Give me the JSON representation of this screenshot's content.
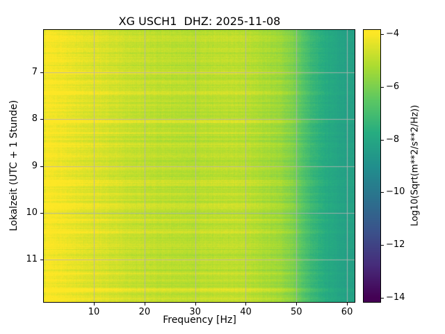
{
  "window": {
    "background": "#ffffff"
  },
  "chart_data": {
    "type": "heatmap",
    "title": "XG USCH1  DHZ: 2025-11-08",
    "xlabel": "Frequency [Hz]",
    "ylabel": "Lokalzeit (UTC + 1 Stunde)",
    "colorbar_label": "Log10(Sqrt(m**2/s**2/Hz))",
    "colormap": "viridis",
    "grid": true,
    "grid_color": "#b2b2b2",
    "x_range": [
      0.1,
      61.5
    ],
    "y_range": [
      6.1,
      11.9
    ],
    "x_ticks": [
      10,
      20,
      30,
      40,
      50,
      60
    ],
    "x_tick_labels": [
      "10",
      "20",
      "30",
      "40",
      "50",
      "60"
    ],
    "y_ticks": [
      7,
      8,
      9,
      10,
      11
    ],
    "y_tick_labels": [
      "7",
      "8",
      "9",
      "10",
      "11"
    ],
    "colorbar_ticks": [
      -4,
      -6,
      -8,
      -10,
      -12,
      -14
    ],
    "colorbar_tick_labels": [
      "−4",
      "−6",
      "−8",
      "−10",
      "−12",
      "−14"
    ],
    "colorbar_value_range_top_bottom": [
      -3.85,
      -14.15
    ],
    "value_limits": [
      -14,
      -4
    ],
    "viridis_stops": [
      "#440154",
      "#472d7b",
      "#3b528b",
      "#2c728e",
      "#21908d",
      "#27ad81",
      "#5dc863",
      "#aadc32",
      "#fde725"
    ],
    "frequency_profile": {
      "freq_hz": [
        0.1,
        0.6,
        1.5,
        3,
        5,
        8,
        12,
        18,
        24,
        30,
        36,
        40,
        44,
        47,
        49,
        51,
        53,
        56,
        59,
        61.5
      ],
      "log10_amplitude": [
        -4.5,
        -4.05,
        -4.1,
        -4.15,
        -4.3,
        -4.45,
        -4.6,
        -4.9,
        -5.05,
        -5.1,
        -5.0,
        -5.05,
        -5.3,
        -5.55,
        -5.9,
        -6.6,
        -7.3,
        -7.9,
        -8.2,
        -8.3
      ]
    },
    "time_events": [
      {
        "time": 6.3,
        "boost": 0.35,
        "width": 0.05
      },
      {
        "time": 6.5,
        "boost": 0.25,
        "width": 0.03
      },
      {
        "time": 6.75,
        "boost": 0.3,
        "width": 0.04
      },
      {
        "time": 7.0,
        "boost": 0.45,
        "width": 0.05
      },
      {
        "time": 7.2,
        "boost": 0.3,
        "width": 0.03
      },
      {
        "time": 7.45,
        "boost": 0.35,
        "width": 0.04
      },
      {
        "time": 7.7,
        "boost": 0.25,
        "width": 0.03
      },
      {
        "time": 8.05,
        "boost": 0.7,
        "width": 0.05
      },
      {
        "time": 8.3,
        "boost": 0.35,
        "width": 0.03
      },
      {
        "time": 8.55,
        "boost": 0.3,
        "width": 0.04
      },
      {
        "time": 8.8,
        "boost": 0.25,
        "width": 0.03
      },
      {
        "time": 9.05,
        "boost": 0.3,
        "width": 0.03
      },
      {
        "time": 9.35,
        "boost": 0.45,
        "width": 0.05
      },
      {
        "time": 9.6,
        "boost": 0.3,
        "width": 0.03
      },
      {
        "time": 9.85,
        "boost": 0.35,
        "width": 0.04
      },
      {
        "time": 10.15,
        "boost": 0.3,
        "width": 0.03
      },
      {
        "time": 10.4,
        "boost": 0.4,
        "width": 0.05
      },
      {
        "time": 10.7,
        "boost": 0.3,
        "width": 0.03
      },
      {
        "time": 11.0,
        "boost": 0.35,
        "width": 0.04
      },
      {
        "time": 11.3,
        "boost": 0.3,
        "width": 0.03
      },
      {
        "time": 11.65,
        "boost": 0.6,
        "width": 0.05
      },
      {
        "time": 11.82,
        "boost": 0.4,
        "width": 0.03
      }
    ],
    "texture": {
      "pixel_noise": 0.3,
      "row_noise": 0.5,
      "column_noise": 0.18
    }
  }
}
